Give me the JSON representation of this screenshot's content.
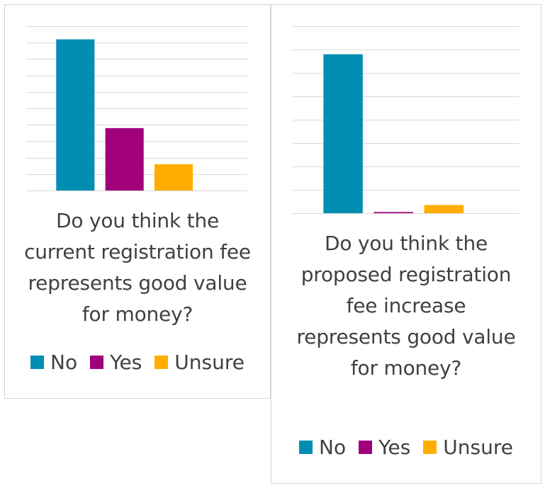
{
  "colors": {
    "No": "#008fb3",
    "Yes": "#a0007a",
    "Unsure": "#ffae00",
    "gridline": "#d9d9d9",
    "text": "#404040"
  },
  "chart_data": [
    {
      "type": "bar",
      "title": "Do you think the current registration fee represents good value for money?",
      "categories": [
        "No",
        "Yes",
        "Unsure"
      ],
      "values": [
        92,
        38,
        16
      ],
      "ylim": [
        0,
        100
      ],
      "grid": true,
      "gridline_count": 10,
      "axes_labels_visible": false,
      "legend": {
        "placement": "bottom",
        "entries": [
          "No",
          "Yes",
          "Unsure"
        ]
      }
    },
    {
      "type": "bar",
      "title": "Do you think the proposed registration fee increase represents good value for money?",
      "categories": [
        "No",
        "Yes",
        "Unsure"
      ],
      "values": [
        136,
        1,
        7
      ],
      "ylim": [
        0,
        160
      ],
      "grid": true,
      "gridline_count": 8,
      "axes_labels_visible": false,
      "legend": {
        "placement": "bottom",
        "entries": [
          "No",
          "Yes",
          "Unsure"
        ]
      }
    }
  ]
}
